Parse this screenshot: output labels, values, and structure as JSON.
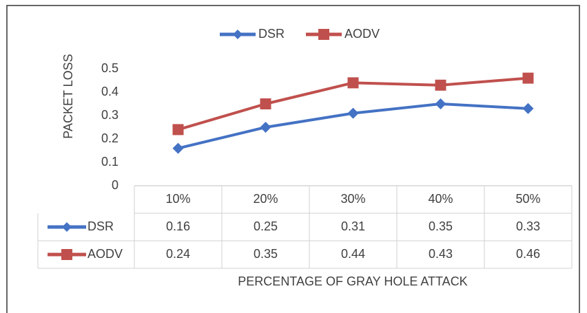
{
  "chart_data": {
    "type": "line",
    "y_label": "PACKET LOSS",
    "x_label": "PERCENTAGE OF GRAY HOLE ATTACK",
    "categories": [
      "10%",
      "20%",
      "30%",
      "40%",
      "50%"
    ],
    "series": [
      {
        "name": "DSR",
        "color": "#4472c4",
        "marker": "diamond",
        "values": [
          0.16,
          0.25,
          0.31,
          0.35,
          0.33
        ]
      },
      {
        "name": "AODV",
        "color": "#c0504d",
        "marker": "square",
        "values": [
          0.24,
          0.35,
          0.44,
          0.43,
          0.46
        ]
      }
    ],
    "ylim": [
      0,
      0.5
    ],
    "yticks": [
      0,
      0.1,
      0.2,
      0.3,
      0.4,
      0.5
    ],
    "grid": false,
    "legend": "top",
    "data_table": true
  }
}
